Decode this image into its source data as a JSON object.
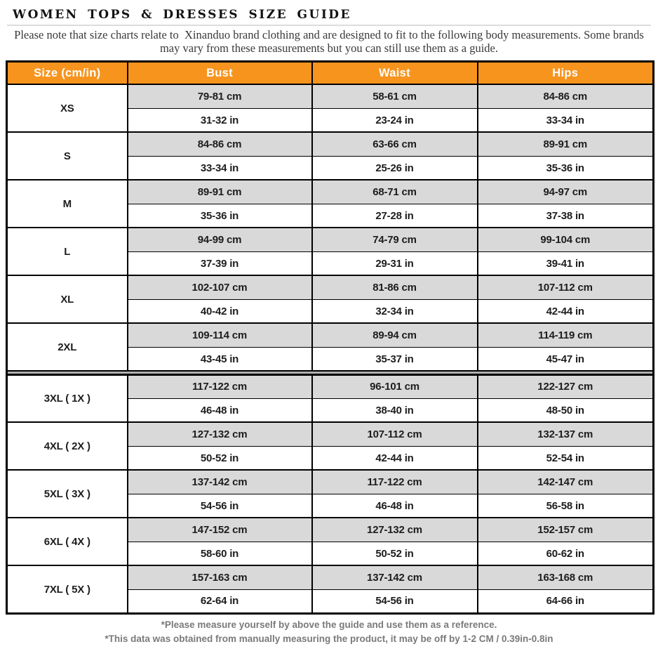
{
  "header": {
    "title": "WOMEN TOPS & DRESSES SIZE GUIDE",
    "note": "Please note that size charts relate to  Xinanduo brand clothing and are designed to fit to the following body measurements. Some brands may vary from these measurements but you can still use them as a guide."
  },
  "table": {
    "columns": [
      "Size (cm/in)",
      "Bust",
      "Waist",
      "Hips"
    ],
    "plus_size_divider_after": "2XL",
    "rows": [
      {
        "size": "XS",
        "cm": [
          "79-81 cm",
          "58-61 cm",
          "84-86 cm"
        ],
        "inch": [
          "31-32 in",
          "23-24 in",
          "33-34 in"
        ]
      },
      {
        "size": "S",
        "cm": [
          "84-86 cm",
          "63-66 cm",
          "89-91 cm"
        ],
        "inch": [
          "33-34 in",
          "25-26 in",
          "35-36 in"
        ]
      },
      {
        "size": "M",
        "cm": [
          "89-91 cm",
          "68-71 cm",
          "94-97 cm"
        ],
        "inch": [
          "35-36 in",
          "27-28 in",
          "37-38 in"
        ]
      },
      {
        "size": "L",
        "cm": [
          "94-99 cm",
          "74-79 cm",
          "99-104 cm"
        ],
        "inch": [
          "37-39 in",
          "29-31 in",
          "39-41 in"
        ]
      },
      {
        "size": "XL",
        "cm": [
          "102-107 cm",
          "81-86 cm",
          "107-112 cm"
        ],
        "inch": [
          "40-42 in",
          "32-34 in",
          "42-44 in"
        ]
      },
      {
        "size": "2XL",
        "cm": [
          "109-114 cm",
          "89-94 cm",
          "114-119 cm"
        ],
        "inch": [
          "43-45 in",
          "35-37 in",
          "45-47 in"
        ]
      },
      {
        "size": "3XL ( 1X )",
        "cm": [
          "117-122 cm",
          "96-101 cm",
          "122-127 cm"
        ],
        "inch": [
          "46-48 in",
          "38-40 in",
          "48-50 in"
        ]
      },
      {
        "size": "4XL ( 2X )",
        "cm": [
          "127-132 cm",
          "107-112 cm",
          "132-137 cm"
        ],
        "inch": [
          "50-52 in",
          "42-44 in",
          "52-54 in"
        ]
      },
      {
        "size": "5XL ( 3X )",
        "cm": [
          "137-142 cm",
          "117-122 cm",
          "142-147 cm"
        ],
        "inch": [
          "54-56 in",
          "46-48 in",
          "56-58 in"
        ]
      },
      {
        "size": "6XL ( 4X )",
        "cm": [
          "147-152 cm",
          "127-132 cm",
          "152-157 cm"
        ],
        "inch": [
          "58-60 in",
          "50-52 in",
          "60-62 in"
        ]
      },
      {
        "size": "7XL ( 5X )",
        "cm": [
          "157-163 cm",
          "137-142 cm",
          "163-168 cm"
        ],
        "inch": [
          "62-64 in",
          "54-56 in",
          "64-66 in"
        ]
      }
    ]
  },
  "footer": {
    "note1": "*Please measure yourself by above the guide and use them as a reference.",
    "note2": "*This data was obtained from manually measuring the product, it may be off by 1-2 CM / 0.39in-0.8in"
  },
  "colors": {
    "header_orange": "#F7941E",
    "row_gray": "#D9D9D9",
    "border_black": "#000000",
    "note_gray": "#3A3A3A",
    "footnote_gray": "#7A7A7A"
  }
}
